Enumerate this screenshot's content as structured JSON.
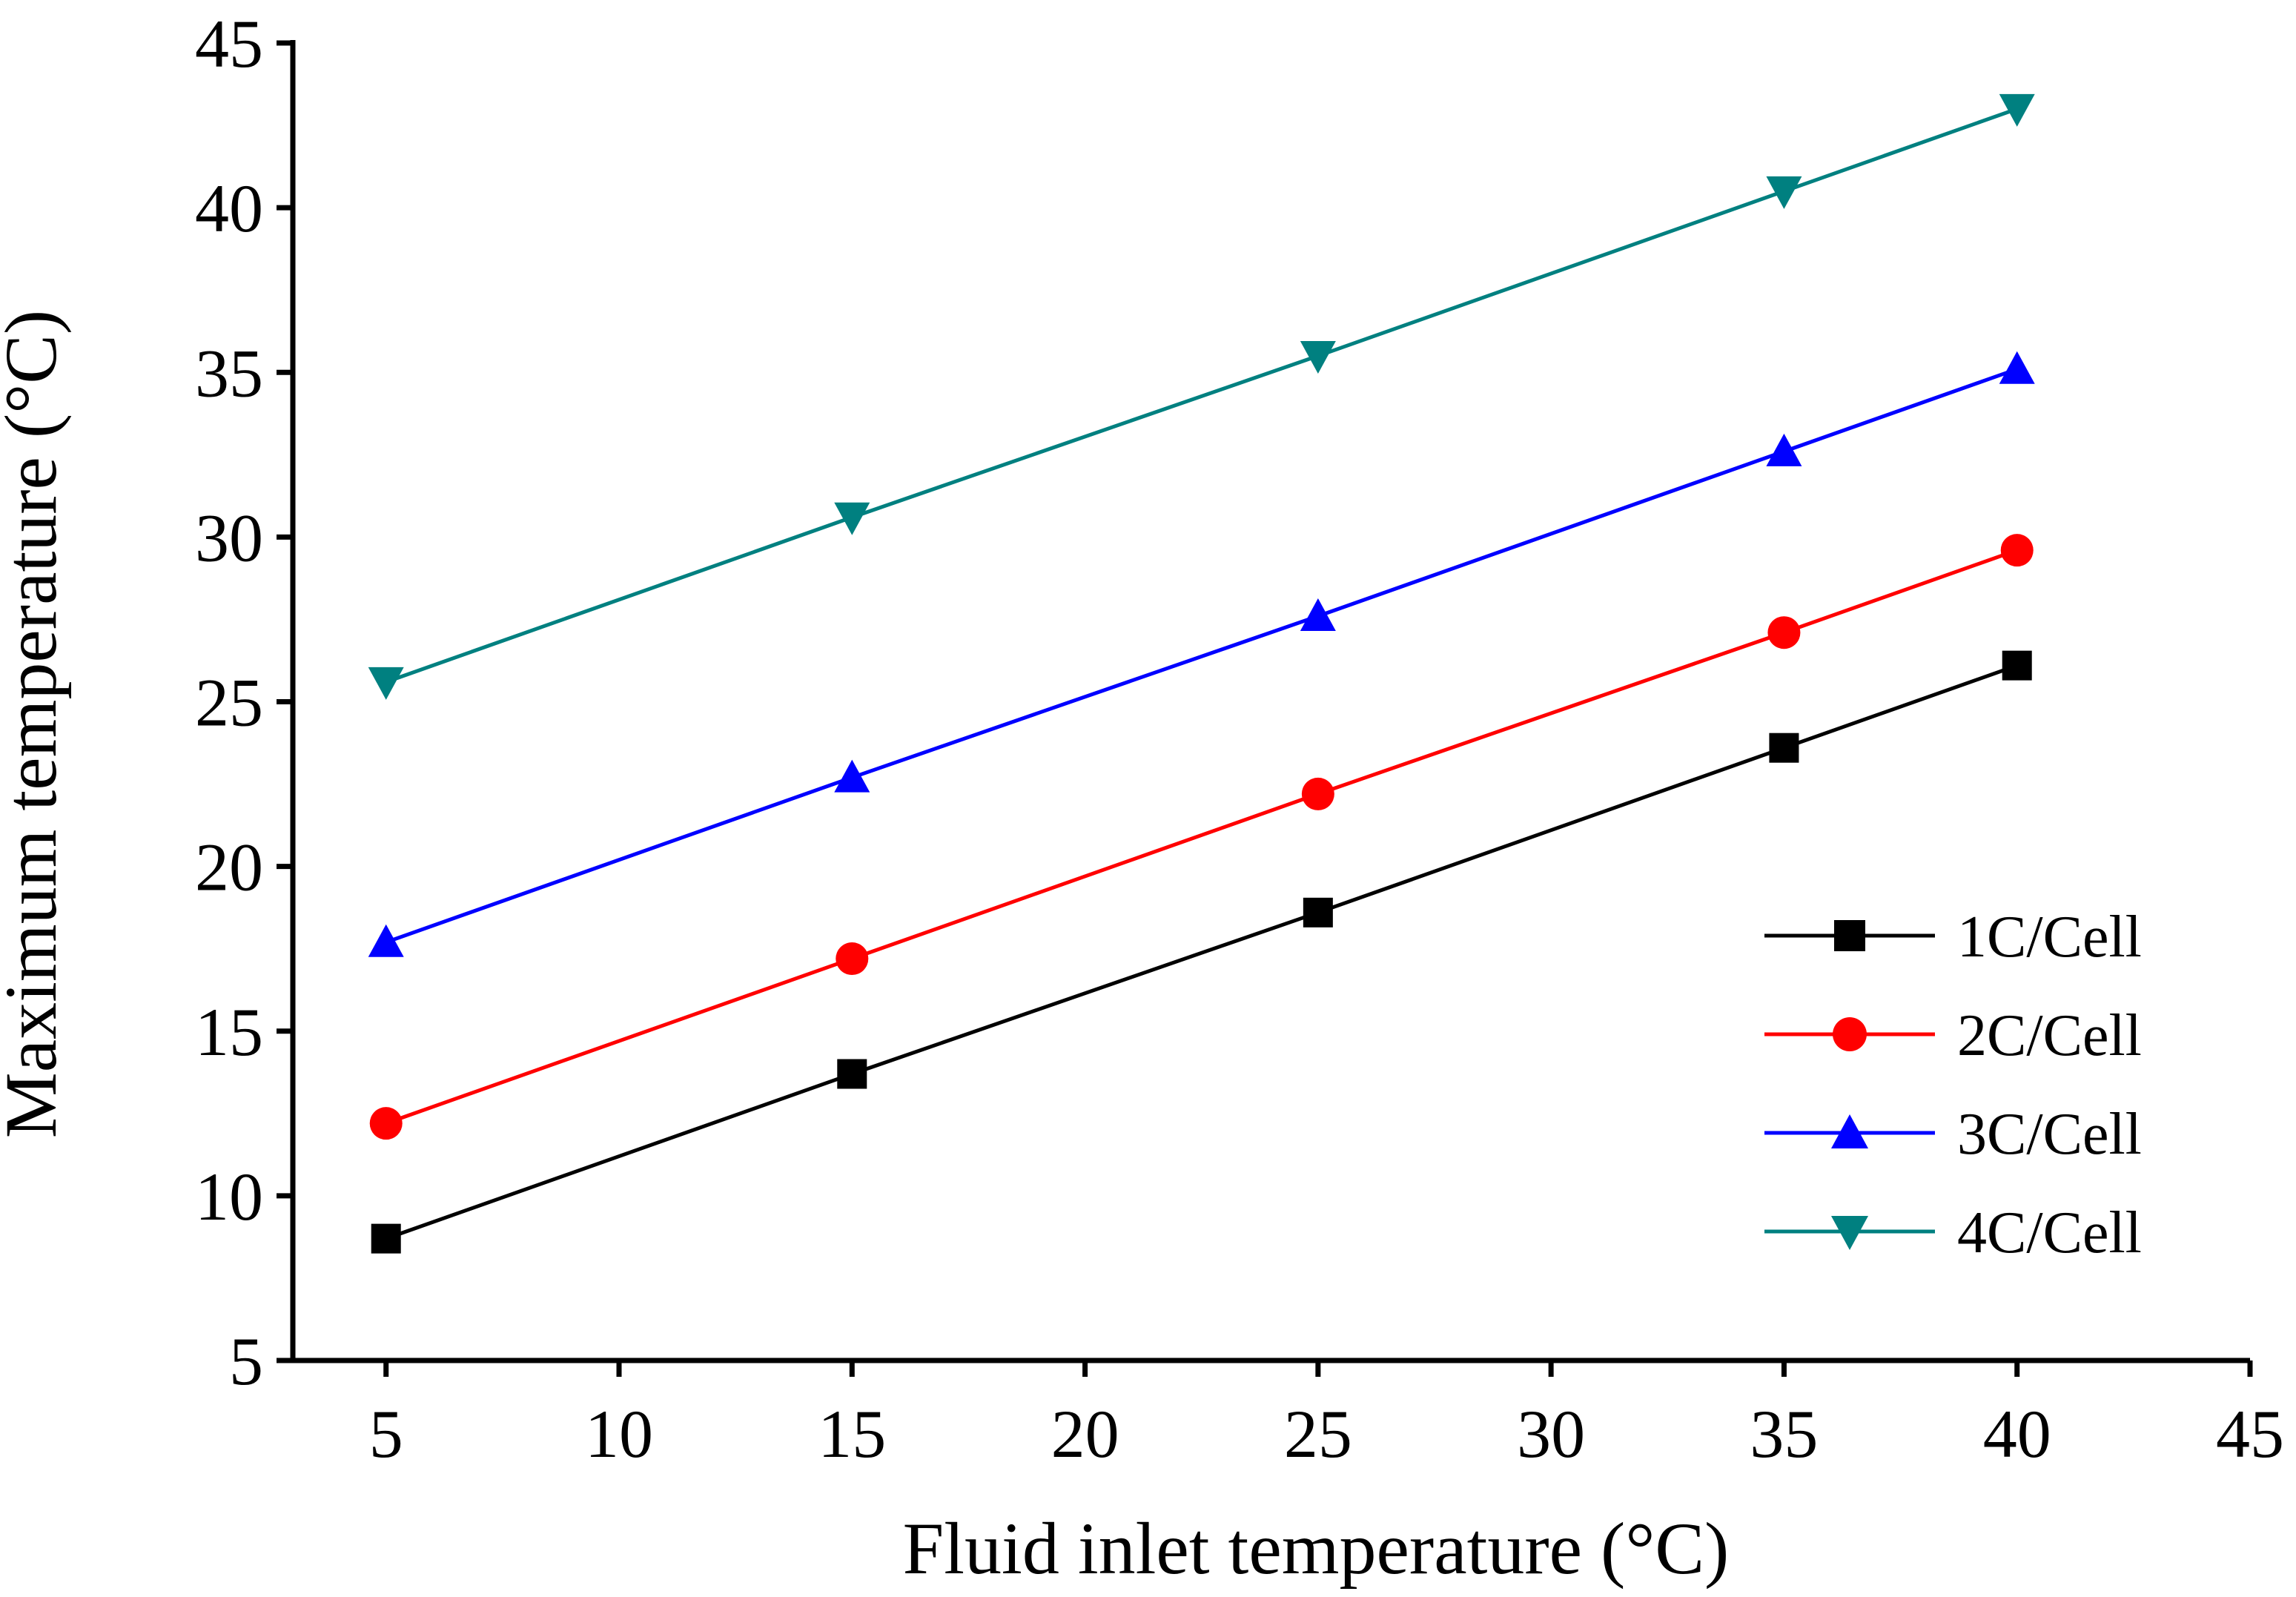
{
  "chart_data": {
    "type": "line",
    "title": "",
    "xlabel": "Fluid inlet temperature (°C)",
    "ylabel": "Maximum temperature (°C)",
    "xlim": [
      3,
      45
    ],
    "ylim": [
      5,
      45
    ],
    "x_ticks": [
      "5",
      "10",
      "15",
      "20",
      "25",
      "30",
      "35",
      "40",
      "45"
    ],
    "y_ticks": [
      "5",
      "10",
      "15",
      "20",
      "25",
      "30",
      "35",
      "40",
      "45"
    ],
    "grid": false,
    "legend_position": "lower-right",
    "x": [
      5,
      15,
      25,
      35,
      40
    ],
    "series": [
      {
        "name": "1C/Cell",
        "color": "#000000",
        "marker": "square",
        "values": [
          8.7,
          13.7,
          18.6,
          23.6,
          26.1
        ]
      },
      {
        "name": "2C/Cell",
        "color": "#ff0000",
        "marker": "circle",
        "values": [
          12.2,
          17.2,
          22.2,
          27.1,
          29.6
        ]
      },
      {
        "name": "3C/Cell",
        "color": "#0000ff",
        "marker": "triangle-up",
        "values": [
          17.7,
          22.7,
          27.6,
          32.6,
          35.1
        ]
      },
      {
        "name": "4C/Cell",
        "color": "#008080",
        "marker": "triangle-down",
        "values": [
          25.6,
          30.6,
          35.5,
          40.5,
          43.0
        ]
      }
    ]
  }
}
